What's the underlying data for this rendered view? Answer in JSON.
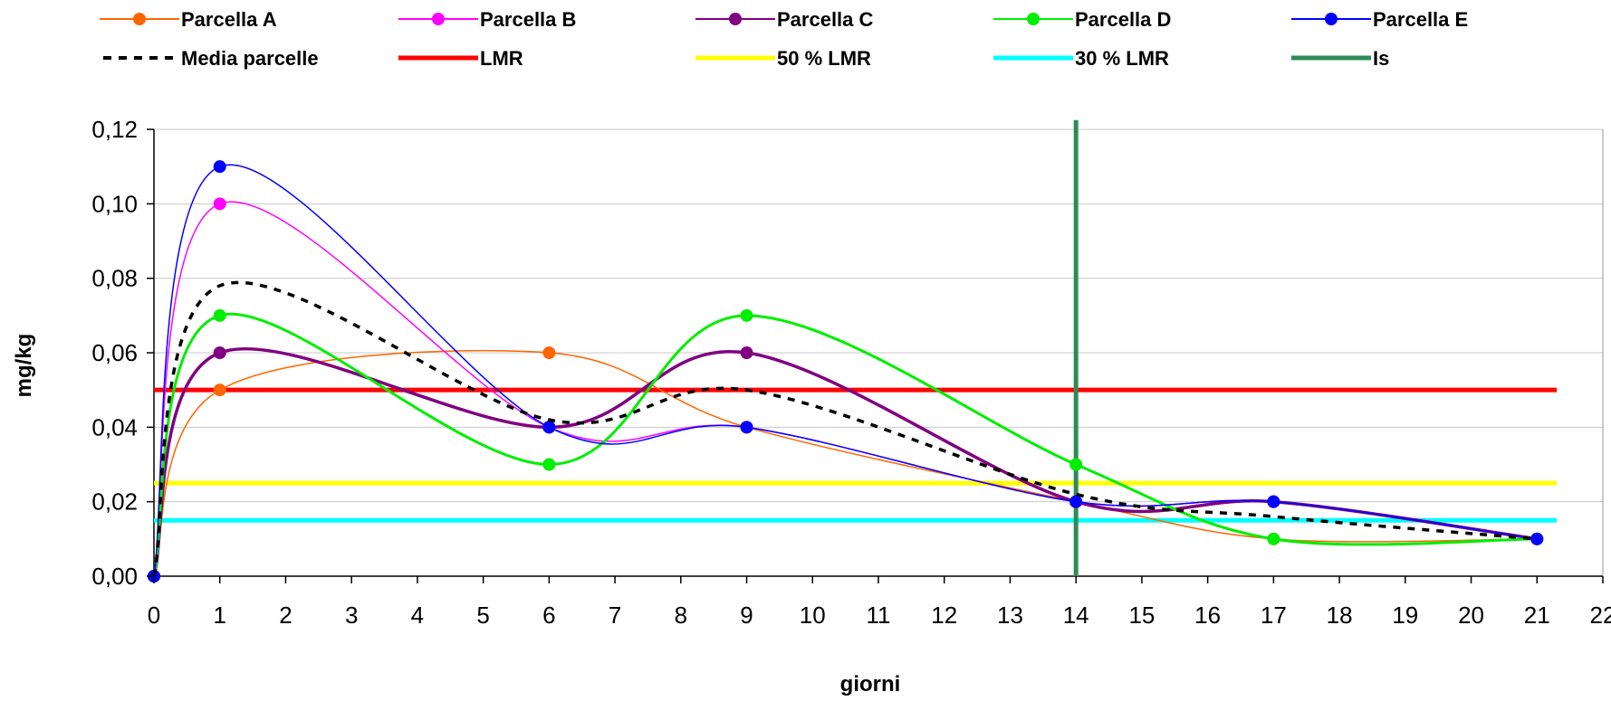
{
  "chart_data": {
    "type": "line",
    "xlabel": "giorni",
    "ylabel": "mg/kg",
    "xlim": [
      0,
      22
    ],
    "ylim": [
      0,
      0.12
    ],
    "x_ticks": [
      0,
      1,
      2,
      3,
      4,
      5,
      6,
      7,
      8,
      9,
      10,
      11,
      12,
      13,
      14,
      15,
      16,
      17,
      18,
      19,
      20,
      21,
      22
    ],
    "x_tick_labels": [
      "0",
      "1",
      "2",
      "3",
      "4",
      "5",
      "6",
      "7",
      "8",
      "9",
      "10",
      "11",
      "12",
      "13",
      "14",
      "15",
      "16",
      "17",
      "18",
      "19",
      "20",
      "21",
      "22"
    ],
    "y_ticks": [
      0,
      0.02,
      0.04,
      0.06,
      0.08,
      0.1,
      0.12
    ],
    "y_tick_labels": [
      "0,00",
      "0,02",
      "0,04",
      "0,06",
      "0,08",
      "0,10",
      "0,12"
    ],
    "grid": "horizontal",
    "legend_position": "top",
    "x_points": [
      0,
      1,
      6,
      9,
      14,
      17,
      21
    ],
    "series": [
      {
        "name": "Parcella A",
        "values": [
          0,
          0.05,
          0.06,
          0.04,
          0.02,
          0.01,
          0.01
        ],
        "color": "#ff6600",
        "markers": true,
        "width": 1.5
      },
      {
        "name": "Parcella B",
        "values": [
          0,
          0.1,
          0.04,
          0.04,
          0.02,
          0.02,
          0.01
        ],
        "color": "#ff00ff",
        "markers": true,
        "width": 1.5
      },
      {
        "name": "Parcella C",
        "values": [
          0,
          0.06,
          0.04,
          0.06,
          0.02,
          0.02,
          0.01
        ],
        "color": "#800080",
        "markers": true,
        "width": 3.5
      },
      {
        "name": "Parcella D",
        "values": [
          0,
          0.07,
          0.03,
          0.07,
          0.03,
          0.01,
          0.01
        ],
        "color": "#00ee00",
        "markers": true,
        "width": 3
      },
      {
        "name": "Parcella E",
        "values": [
          0,
          0.11,
          0.04,
          0.04,
          0.02,
          0.02,
          0.01
        ],
        "color": "#0000ff",
        "markers": true,
        "width": 1.5
      },
      {
        "name": "Media parcelle",
        "values": [
          0,
          0.078,
          0.042,
          0.05,
          0.022,
          0.016,
          0.01
        ],
        "color": "#000000",
        "markers": false,
        "width": 3.5,
        "dash": "8,8"
      }
    ],
    "reference_lines": [
      {
        "name": "LMR",
        "axis": "y",
        "value": 0.05,
        "color": "#ff0000",
        "width": 5,
        "x_end": 21.3
      },
      {
        "name": "50 % LMR",
        "axis": "y",
        "value": 0.025,
        "color": "#ffff00",
        "width": 5,
        "x_end": 21.3
      },
      {
        "name": "30 % LMR",
        "axis": "y",
        "value": 0.015,
        "color": "#00ffff",
        "width": 5,
        "x_end": 21.3
      },
      {
        "name": "Is",
        "axis": "x",
        "value": 14,
        "color": "#2e8b57",
        "width": 5,
        "y_top": 0.1225
      }
    ],
    "legend": [
      {
        "label": "Parcella A",
        "color": "#ff6600",
        "kind": "marker-line"
      },
      {
        "label": "Parcella B",
        "color": "#ff00ff",
        "kind": "marker-line"
      },
      {
        "label": "Parcella C",
        "color": "#800080",
        "kind": "marker-line"
      },
      {
        "label": "Parcella D",
        "color": "#00ee00",
        "kind": "marker-line"
      },
      {
        "label": "Parcella E",
        "color": "#0000ff",
        "kind": "marker-line"
      },
      {
        "label": "Media parcelle",
        "color": "#000000",
        "kind": "dashed"
      },
      {
        "label": "LMR",
        "color": "#ff0000",
        "kind": "thick"
      },
      {
        "label": "50 % LMR",
        "color": "#ffff00",
        "kind": "thick"
      },
      {
        "label": "30 % LMR",
        "color": "#00ffff",
        "kind": "thick"
      },
      {
        "label": "Is",
        "color": "#2e8b57",
        "kind": "thick"
      }
    ]
  }
}
